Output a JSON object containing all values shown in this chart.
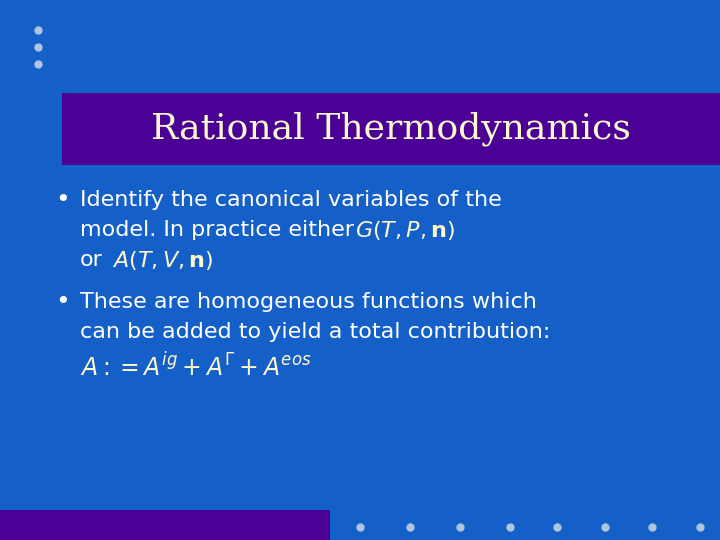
{
  "bg_color": "#1560C8",
  "title_bar_color": "#4B0096",
  "title_text": "Rational Thermodynamics",
  "title_color": "#FFFACD",
  "title_fontsize": 26,
  "bullet_color": "#FFFFFF",
  "bullet_fontsize": 16,
  "math_color": "#FFFACD",
  "dots_color": "#B0C4DE",
  "bottom_bar_color": "#4B0096",
  "bullet1_line1": "Identify the canonical variables of the",
  "bullet1_line2": "model. In practice either",
  "bullet1_math1": "$G(T, P, \\mathbf{n})$",
  "bullet1_line3": "or",
  "bullet1_math2": "$A(T, V, \\mathbf{n})$",
  "bullet2_line1": "These are homogeneous functions which",
  "bullet2_line2": "can be added to yield a total contribution:",
  "bullet2_math": "$A := A^{ig} + A^{\\Gamma} + A^{eos}$"
}
